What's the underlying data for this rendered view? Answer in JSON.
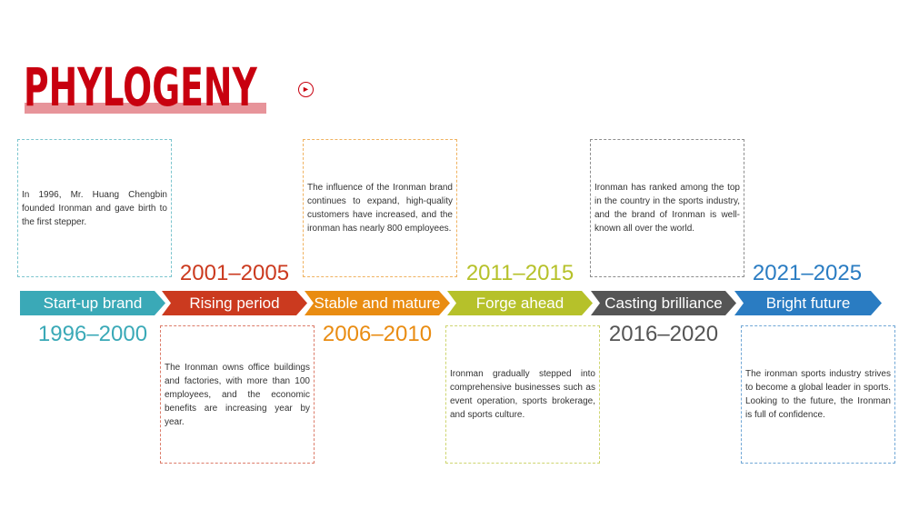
{
  "title": "PHYLOGENY",
  "icon": "play-circle-icon",
  "stages": [
    {
      "label": "Start-up brand",
      "years": "1996–2000",
      "color": "#3aa9b7",
      "text": "In 1996, Mr. Huang Chengbin founded Ironman and gave birth to the first stepper."
    },
    {
      "label": "Rising period",
      "years": "2001–2005",
      "color": "#cb3a1f",
      "text": "The Ironman owns office buildings and factories, with more than 100 employees, and the economic benefits are increasing year by year."
    },
    {
      "label": "Stable and mature",
      "years": "2006–2010",
      "color": "#e98c12",
      "text": "The influence of the Ironman brand continues to expand, high-quality customers have increased, and the ironman has nearly 800 employees."
    },
    {
      "label": "Forge ahead",
      "years": "2011–2015",
      "color": "#b6c12a",
      "text": "Ironman gradually stepped into comprehensive businesses such as event operation, sports brokerage, and sports culture."
    },
    {
      "label": "Casting brilliance",
      "years": "2016–2020",
      "color": "#555555",
      "text": "Ironman has ranked among the top in the country in the sports industry, and the brand of Ironman is well-known all over the world."
    },
    {
      "label": "Bright future",
      "years": "2021–2025",
      "color": "#2a7cc2",
      "text": "The ironman sports industry strives to become a global leader in sports. Looking to the future, the Ironman is full of confidence."
    }
  ]
}
